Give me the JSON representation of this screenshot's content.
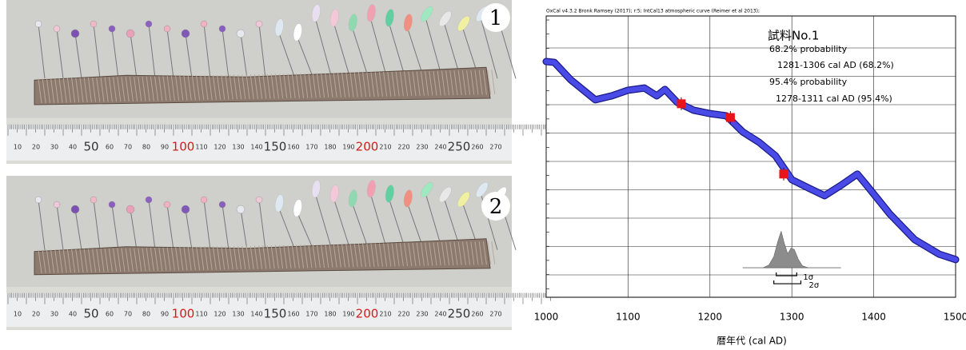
{
  "photos": [
    {
      "label": "1"
    },
    {
      "label": "2"
    }
  ],
  "ruler_labels": [
    10,
    20,
    30,
    40,
    50,
    60,
    70,
    80,
    90,
    100,
    110,
    120,
    130,
    140,
    150,
    160,
    170,
    180,
    190,
    200,
    210,
    220,
    230,
    240,
    250,
    260,
    270
  ],
  "chart_data": {
    "type": "calibration",
    "header": "OxCal v4.3.2 Bronk Ramsey (2017); r:5; IntCal13 atmospheric curve (Reimer et al 2013);",
    "title": "試料No.1",
    "annotations": [
      "68.2% probability",
      "1281-1306 cal AD (68.2%)",
      "95.4% probability",
      "1278-1311 cal AD (95.4%)"
    ],
    "xlabel": "暦年代 (cal AD)",
    "xlim": [
      1000,
      1500
    ],
    "xticks": [
      1000,
      1100,
      1200,
      1300,
      1400,
      1500
    ],
    "ylim": [
      0,
      100
    ],
    "curve": {
      "color": "#4a4ae6",
      "x": [
        1000,
        1010,
        1030,
        1060,
        1080,
        1100,
        1120,
        1135,
        1145,
        1160,
        1180,
        1200,
        1220,
        1240,
        1260,
        1280,
        1300,
        1320,
        1340,
        1360,
        1380,
        1390,
        1420,
        1450,
        1480,
        1500
      ],
      "y": [
        83.8,
        83.5,
        77.3,
        70.2,
        71.6,
        73.6,
        74.4,
        71.6,
        73.9,
        69.3,
        66.5,
        65.3,
        64.5,
        58.8,
        55.1,
        50.3,
        41.8,
        38.9,
        36.1,
        39.8,
        43.8,
        40.3,
        29.5,
        20.5,
        15.3,
        13.4
      ]
    },
    "markers": {
      "color": "#e8141a",
      "x": [
        1165,
        1225,
        1290
      ],
      "y": [
        68.8,
        63.9,
        43.8
      ]
    },
    "distribution": {
      "color": "#8c8c8c",
      "x": [
        1265,
        1272,
        1278,
        1283,
        1287,
        1291,
        1295,
        1299,
        1303,
        1308,
        1313,
        1320
      ],
      "y": [
        10.5,
        11.5,
        14.5,
        20,
        23.5,
        19,
        15.5,
        17.5,
        17,
        13.5,
        11.2,
        10.5
      ]
    },
    "baseline": {
      "x": [
        1240,
        1360
      ],
      "y": [
        10.5,
        10.5
      ]
    },
    "ranges": [
      {
        "label": "1σ",
        "from": 1281,
        "to": 1306
      },
      {
        "label": "2σ",
        "from": 1278,
        "to": 1311
      }
    ]
  }
}
